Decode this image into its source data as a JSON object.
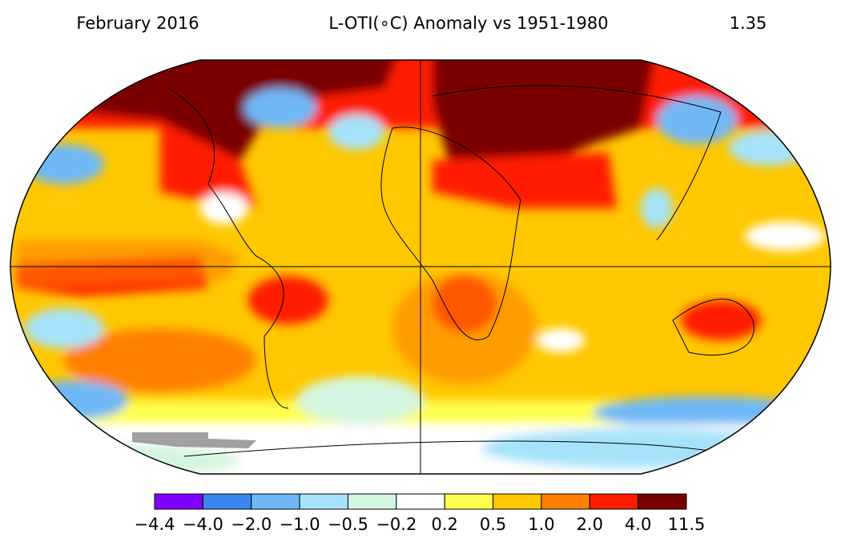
{
  "header": {
    "date": "February 2016",
    "title": "L-OTI(∘C) Anomaly vs 1951-1980",
    "global_mean": "1.35"
  },
  "colorbar": {
    "colors": [
      "#8000ff",
      "#3a86f0",
      "#6fb8f5",
      "#a6e3fa",
      "#d4f5df",
      "#ffffff",
      "#ffff4d",
      "#ffc800",
      "#ff8000",
      "#ff1a00",
      "#7a0000"
    ],
    "labels": [
      "−4.4",
      "−4.0",
      "−2.0",
      "−1.0",
      "−0.5",
      "−0.2",
      "0.2",
      "0.5",
      "1.0",
      "2.0",
      "4.0",
      "11.5"
    ]
  }
}
